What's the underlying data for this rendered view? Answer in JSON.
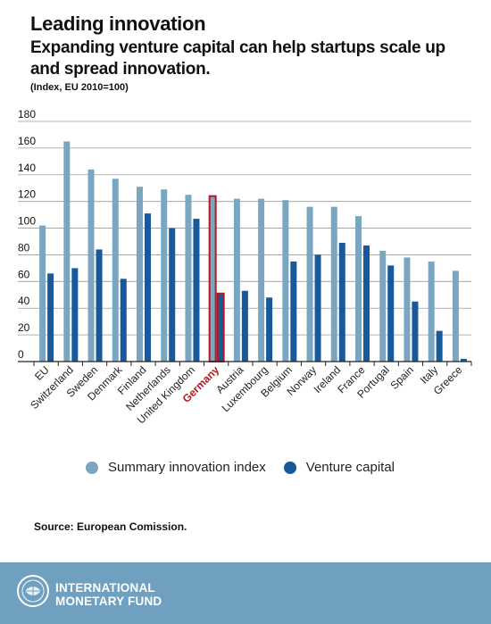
{
  "header": {
    "title": "Leading innovation",
    "subtitle": "Expanding venture capital can help startups scale up and spread innovation.",
    "note": "(Index, EU 2010=100)"
  },
  "source": "Source: European Comission.",
  "footer": {
    "org_line1": "INTERNATIONAL",
    "org_line2": "MONETARY FUND"
  },
  "colors": {
    "summary_innovation": "#7aa6c2",
    "venture_capital": "#17599a",
    "highlight": "#b4191d",
    "footer_bg": "#6fa0c0"
  },
  "chart_data": {
    "type": "bar",
    "categories": [
      "EU",
      "Switzerland",
      "Sweden",
      "Denmark",
      "Finland",
      "Netherlands",
      "United Kingdom",
      "Germany",
      "Austria",
      "Luxembourg",
      "Belgium",
      "Norway",
      "Ireland",
      "France",
      "Portugal",
      "Spain",
      "Italy",
      "Greece"
    ],
    "highlighted_category": "Germany",
    "series": [
      {
        "name": "Summary innovation index",
        "values": [
          102,
          165,
          144,
          137,
          131,
          129,
          125,
          124,
          122,
          122,
          121,
          116,
          116,
          109,
          83,
          78,
          75,
          68
        ]
      },
      {
        "name": "Venture capital",
        "values": [
          66,
          70,
          84,
          62,
          111,
          100,
          107,
          51,
          53,
          48,
          75,
          80,
          89,
          87,
          72,
          45,
          23,
          2
        ]
      }
    ],
    "ylim": [
      0,
      180
    ],
    "yticks": [
      0,
      20,
      40,
      60,
      80,
      100,
      120,
      140,
      160,
      180
    ],
    "grid": true,
    "legend_position": "bottom",
    "xlabel": "",
    "ylabel": ""
  }
}
